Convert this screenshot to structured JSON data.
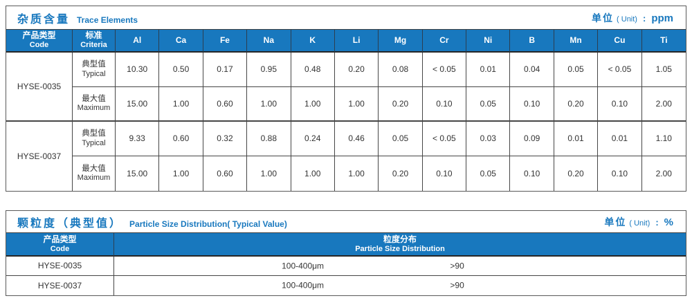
{
  "colors": {
    "accent": "#1878be",
    "header_bg": "#1878be",
    "border_dark": "#454545",
    "text": "#333333"
  },
  "table1": {
    "title_zh": "杂质含量",
    "title_en": "Trace Elements",
    "unit": {
      "zh": "单位",
      "paren": "( Unit)",
      "colon": ":",
      "value": "ppm"
    },
    "col_code": {
      "zh": "产品类型",
      "en": "Code"
    },
    "col_criteria": {
      "zh": "标准",
      "en": "Criteria"
    },
    "elements": [
      "Al",
      "Ca",
      "Fe",
      "Na",
      "K",
      "Li",
      "Mg",
      "Cr",
      "Ni",
      "B",
      "Mn",
      "Cu",
      "Ti"
    ],
    "products": [
      {
        "code": "HYSE-0035",
        "rows": [
          {
            "zh": "典型值",
            "en": "Typical",
            "values": [
              "10.30",
              "0.50",
              "0.17",
              "0.95",
              "0.48",
              "0.20",
              "0.08",
              "< 0.05",
              "0.01",
              "0.04",
              "0.05",
              "< 0.05",
              "1.05"
            ]
          },
          {
            "zh": "最大值",
            "en": "Maximum",
            "values": [
              "15.00",
              "1.00",
              "0.60",
              "1.00",
              "1.00",
              "1.00",
              "0.20",
              "0.10",
              "0.05",
              "0.10",
              "0.20",
              "0.10",
              "2.00"
            ]
          }
        ]
      },
      {
        "code": "HYSE-0037",
        "rows": [
          {
            "zh": "典型值",
            "en": "Typical",
            "values": [
              "9.33",
              "0.60",
              "0.32",
              "0.88",
              "0.24",
              "0.46",
              "0.05",
              "< 0.05",
              "0.03",
              "0.09",
              "0.01",
              "0.01",
              "1.10"
            ]
          },
          {
            "zh": "最大值",
            "en": "Maximum",
            "values": [
              "15.00",
              "1.00",
              "0.60",
              "1.00",
              "1.00",
              "1.00",
              "0.20",
              "0.10",
              "0.05",
              "0.10",
              "0.20",
              "0.10",
              "2.00"
            ]
          }
        ]
      }
    ]
  },
  "table2": {
    "title_zh": "颗粒度（典型值）",
    "title_en": "Particle Size Distribution( Typical Value)",
    "unit": {
      "zh": "单位",
      "paren": "( Unit)",
      "colon": ":",
      "value": "%"
    },
    "col_code": {
      "zh": "产品类型",
      "en": "Code"
    },
    "col_dist": {
      "zh": "粒度分布",
      "en": "Particle Size Distribution"
    },
    "rows": [
      {
        "code": "HYSE-0035",
        "range": "100-400μm",
        "value": ">90"
      },
      {
        "code": "HYSE-0037",
        "range": "100-400μm",
        "value": ">90"
      }
    ]
  }
}
